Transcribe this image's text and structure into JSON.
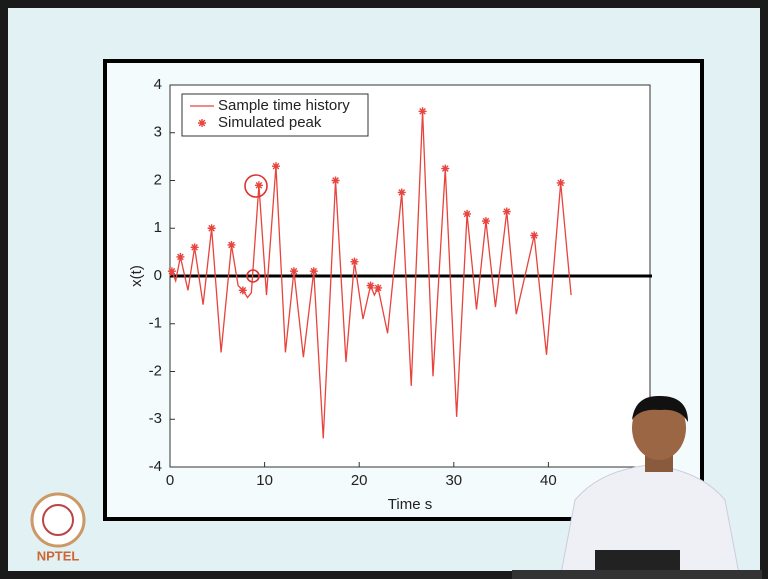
{
  "logo_text": "NPTEL",
  "chart_data": {
    "type": "line",
    "x_label": "Time s",
    "y_label": "x(t)",
    "xlim": [
      0,
      50
    ],
    "ylim": [
      -4,
      4
    ],
    "xticks": [
      0,
      10,
      20,
      30,
      40
    ],
    "yticks": [
      -4,
      -3,
      -2,
      -1,
      0,
      1,
      2,
      3,
      4
    ],
    "series": [
      {
        "name": "Sample time history",
        "type": "line",
        "color": "#e8433c",
        "x": [
          0,
          0.2,
          0.6,
          1.1,
          1.9,
          2.6,
          3.5,
          4.4,
          5.4,
          6.5,
          7.2,
          7.7,
          8.2,
          8.6,
          9.4,
          10.2,
          11.2,
          12.2,
          13.1,
          14.1,
          15.2,
          16.2,
          17.5,
          18.6,
          19.5,
          20.4,
          21.2,
          21.6,
          22.0,
          23.0,
          24.5,
          25.5,
          26.7,
          27.8,
          29.1,
          30.3,
          31.4,
          32.4,
          33.4,
          34.4,
          35.6,
          36.6,
          38.5,
          39.8,
          41.3,
          42.4
        ],
        "values": [
          0,
          0.1,
          -0.1,
          0.4,
          -0.3,
          0.6,
          -0.6,
          1.0,
          -1.6,
          0.65,
          -0.2,
          -0.3,
          -0.45,
          -0.35,
          1.9,
          -0.4,
          2.3,
          -1.6,
          0.1,
          -1.7,
          0.1,
          -3.4,
          2.0,
          -1.8,
          0.3,
          -0.9,
          -0.2,
          -0.4,
          -0.25,
          -1.2,
          1.75,
          -2.3,
          3.45,
          -2.1,
          2.25,
          -2.95,
          1.3,
          -0.7,
          1.15,
          -0.65,
          1.35,
          -0.8,
          0.85,
          -1.65,
          1.95,
          -0.4
        ]
      },
      {
        "name": "Simulated peak",
        "type": "scatter",
        "marker": "*",
        "color": "#e8433c",
        "x": [
          0.2,
          1.1,
          2.6,
          4.4,
          6.5,
          7.7,
          9.4,
          11.2,
          13.1,
          15.2,
          17.5,
          19.5,
          21.2,
          22.0,
          24.5,
          26.7,
          29.1,
          31.4,
          33.4,
          35.6,
          38.5,
          41.3
        ],
        "values": [
          0.1,
          0.4,
          0.6,
          1.0,
          0.65,
          -0.3,
          1.9,
          2.3,
          0.1,
          0.1,
          2.0,
          0.3,
          -0.2,
          -0.25,
          1.75,
          3.45,
          2.25,
          1.3,
          1.15,
          1.35,
          0.85,
          1.95
        ]
      }
    ]
  }
}
